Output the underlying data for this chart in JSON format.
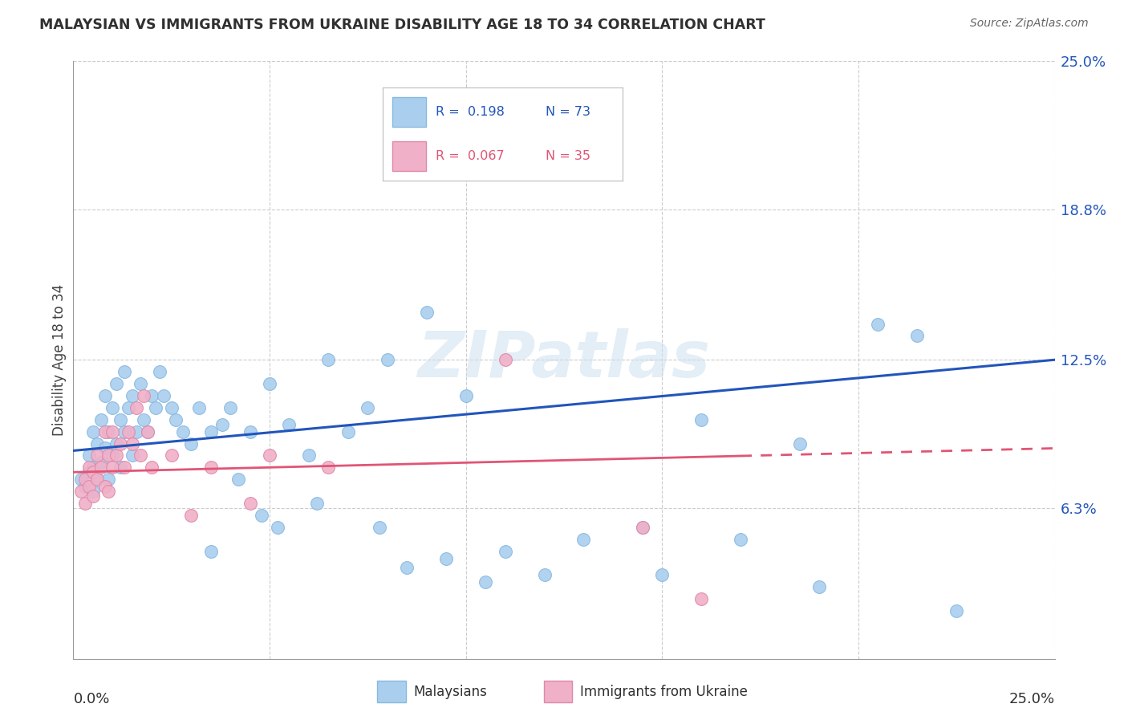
{
  "title": "MALAYSIAN VS IMMIGRANTS FROM UKRAINE DISABILITY AGE 18 TO 34 CORRELATION CHART",
  "source": "Source: ZipAtlas.com",
  "ylabel": "Disability Age 18 to 34",
  "ytick_values": [
    6.3,
    12.5,
    18.8,
    25.0
  ],
  "xmin": 0.0,
  "xmax": 25.0,
  "ymin": 0.0,
  "ymax": 25.0,
  "malaysians_color": "#aacfee",
  "ukraine_color": "#f0b0c8",
  "trend_blue": "#2255bb",
  "trend_pink": "#e05575",
  "watermark": "ZIPatlas",
  "malaysians_x": [
    0.2,
    0.3,
    0.4,
    0.4,
    0.5,
    0.5,
    0.5,
    0.6,
    0.6,
    0.7,
    0.7,
    0.8,
    0.8,
    0.9,
    0.9,
    1.0,
    1.0,
    1.1,
    1.1,
    1.2,
    1.2,
    1.3,
    1.3,
    1.4,
    1.5,
    1.5,
    1.6,
    1.7,
    1.8,
    1.9,
    2.0,
    2.1,
    2.2,
    2.3,
    2.5,
    2.6,
    2.8,
    3.0,
    3.2,
    3.5,
    3.8,
    4.0,
    4.5,
    5.0,
    5.5,
    6.0,
    7.0,
    7.5,
    8.0,
    9.0,
    10.0,
    11.0,
    12.0,
    13.0,
    14.5,
    15.0,
    16.0,
    17.0,
    18.5,
    19.0,
    20.5,
    21.5,
    22.5,
    4.2,
    4.8,
    5.2,
    6.2,
    7.8,
    8.5,
    9.5,
    3.5,
    6.5,
    10.5
  ],
  "malaysians_y": [
    7.5,
    7.2,
    7.8,
    8.5,
    7.0,
    8.0,
    9.5,
    7.5,
    9.0,
    8.2,
    10.0,
    8.8,
    11.0,
    7.5,
    9.5,
    8.5,
    10.5,
    9.0,
    11.5,
    8.0,
    10.0,
    9.5,
    12.0,
    10.5,
    8.5,
    11.0,
    9.5,
    11.5,
    10.0,
    9.5,
    11.0,
    10.5,
    12.0,
    11.0,
    10.5,
    10.0,
    9.5,
    9.0,
    10.5,
    9.5,
    9.8,
    10.5,
    9.5,
    11.5,
    9.8,
    8.5,
    9.5,
    10.5,
    12.5,
    14.5,
    11.0,
    4.5,
    3.5,
    5.0,
    5.5,
    3.5,
    10.0,
    5.0,
    9.0,
    3.0,
    14.0,
    13.5,
    2.0,
    7.5,
    6.0,
    5.5,
    6.5,
    5.5,
    3.8,
    4.2,
    4.5,
    12.5,
    3.2
  ],
  "ukraine_x": [
    0.2,
    0.3,
    0.3,
    0.4,
    0.4,
    0.5,
    0.5,
    0.6,
    0.6,
    0.7,
    0.8,
    0.8,
    0.9,
    0.9,
    1.0,
    1.0,
    1.1,
    1.2,
    1.3,
    1.4,
    1.5,
    1.6,
    1.7,
    1.8,
    1.9,
    2.0,
    2.5,
    3.0,
    3.5,
    4.5,
    5.0,
    6.5,
    11.0,
    14.5,
    16.0
  ],
  "ukraine_y": [
    7.0,
    6.5,
    7.5,
    7.2,
    8.0,
    6.8,
    7.8,
    7.5,
    8.5,
    8.0,
    7.2,
    9.5,
    7.0,
    8.5,
    8.0,
    9.5,
    8.5,
    9.0,
    8.0,
    9.5,
    9.0,
    10.5,
    8.5,
    11.0,
    9.5,
    8.0,
    8.5,
    6.0,
    8.0,
    6.5,
    8.5,
    8.0,
    12.5,
    5.5,
    2.5
  ],
  "trend_blue_x0": 0.0,
  "trend_blue_y0": 8.7,
  "trend_blue_x1": 25.0,
  "trend_blue_y1": 12.5,
  "trend_pink_x0": 0.0,
  "trend_pink_y0": 7.8,
  "trend_pink_x1": 25.0,
  "trend_pink_y1": 8.8
}
